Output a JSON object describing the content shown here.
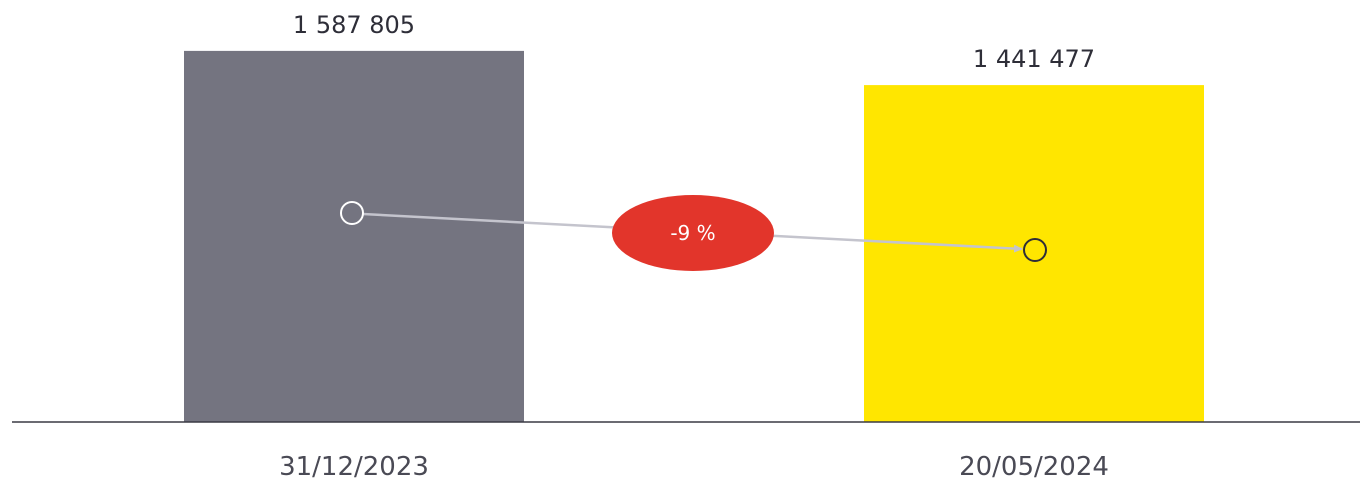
{
  "chart_data": {
    "type": "bar",
    "categories": [
      "31/12/2023",
      "20/05/2024"
    ],
    "values": [
      1587805,
      1441477
    ],
    "value_labels": [
      "1 587 805",
      "1 441 477"
    ],
    "bar_colors": [
      "#747480",
      "#ffe600"
    ],
    "ylim": [
      0,
      1720000
    ],
    "grid": false,
    "change": {
      "label": "-9 %",
      "badge_color": "#e2352b",
      "arrow_color": "#c4c4cd",
      "marker_colors": [
        "#ffffff",
        "#2e2e38"
      ]
    }
  }
}
